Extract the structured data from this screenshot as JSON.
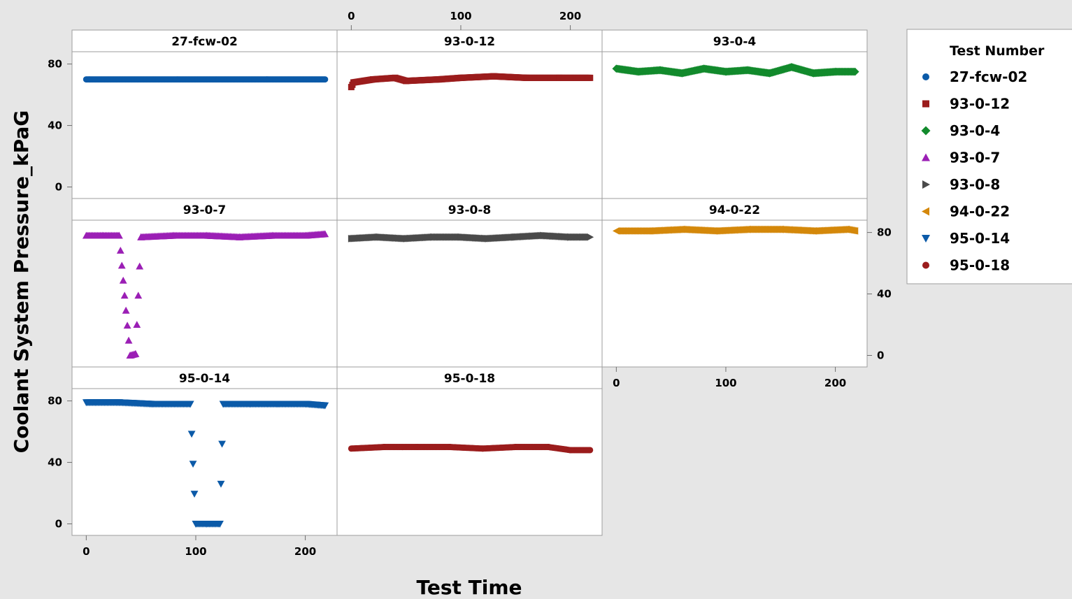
{
  "chart_data": {
    "type": "scatter",
    "title": "",
    "xlabel": "Test Time",
    "ylabel": "Coolant System Pressure_kPaG",
    "xlim": [
      -13,
      229
    ],
    "ylim": [
      -7.5,
      88
    ],
    "x_ticks": [
      "0",
      "100",
      "200"
    ],
    "y_ticks": [
      "0",
      "40",
      "80"
    ],
    "legend": {
      "title": "Test Number",
      "placement": "right"
    },
    "layout": "panel grid 3 columns x 3 rows, 8 panels",
    "series": [
      {
        "name": "27-fcw-02",
        "marker": "circle",
        "color": "#0b5aa8",
        "x": [
          0,
          218
        ],
        "y": [
          70,
          70
        ]
      },
      {
        "name": "93-0-12",
        "marker": "square",
        "color": "#9b1c1c",
        "x": [
          0,
          2,
          20,
          40,
          50,
          80,
          100,
          130,
          160,
          190,
          218
        ],
        "y": [
          65,
          68,
          70,
          71,
          69,
          70,
          71,
          72,
          71,
          71,
          71
        ]
      },
      {
        "name": "93-0-4",
        "marker": "diamond",
        "color": "#128a2c",
        "x": [
          0,
          20,
          40,
          60,
          80,
          100,
          120,
          140,
          160,
          180,
          200,
          218
        ],
        "y": [
          77,
          75,
          76,
          74,
          77,
          75,
          76,
          74,
          78,
          74,
          75,
          75
        ]
      },
      {
        "name": "93-0-7",
        "marker": "triangle-up",
        "color": "#9b1fb5",
        "x": [
          0,
          15,
          30,
          40,
          45,
          50,
          80,
          110,
          140,
          170,
          200,
          218
        ],
        "y": [
          78,
          78,
          78,
          0,
          1,
          77,
          78,
          78,
          77,
          78,
          78,
          79
        ]
      },
      {
        "name": "93-0-8",
        "marker": "triangle-right",
        "color": "#4a4a4a",
        "x": [
          0,
          25,
          50,
          75,
          100,
          125,
          150,
          175,
          200,
          218
        ],
        "y": [
          76,
          77,
          76,
          77,
          77,
          76,
          77,
          78,
          77,
          77
        ]
      },
      {
        "name": "94-0-22",
        "marker": "triangle-left",
        "color": "#d4880b",
        "x": [
          0,
          30,
          60,
          90,
          120,
          150,
          180,
          210,
          218
        ],
        "y": [
          81,
          81,
          82,
          81,
          82,
          82,
          81,
          82,
          81
        ]
      },
      {
        "name": "95-0-14",
        "marker": "triangle-down",
        "color": "#0b5aa8",
        "x": [
          0,
          30,
          60,
          95,
          100,
          110,
          122,
          125,
          150,
          175,
          200,
          218
        ],
        "y": [
          79,
          79,
          78,
          78,
          0,
          0,
          0,
          78,
          78,
          78,
          78,
          77
        ]
      },
      {
        "name": "95-0-18",
        "marker": "circle",
        "color": "#9b1c1c",
        "x": [
          0,
          30,
          60,
          90,
          120,
          150,
          180,
          200,
          218
        ],
        "y": [
          49,
          50,
          50,
          50,
          49,
          50,
          50,
          48,
          48
        ]
      }
    ]
  }
}
